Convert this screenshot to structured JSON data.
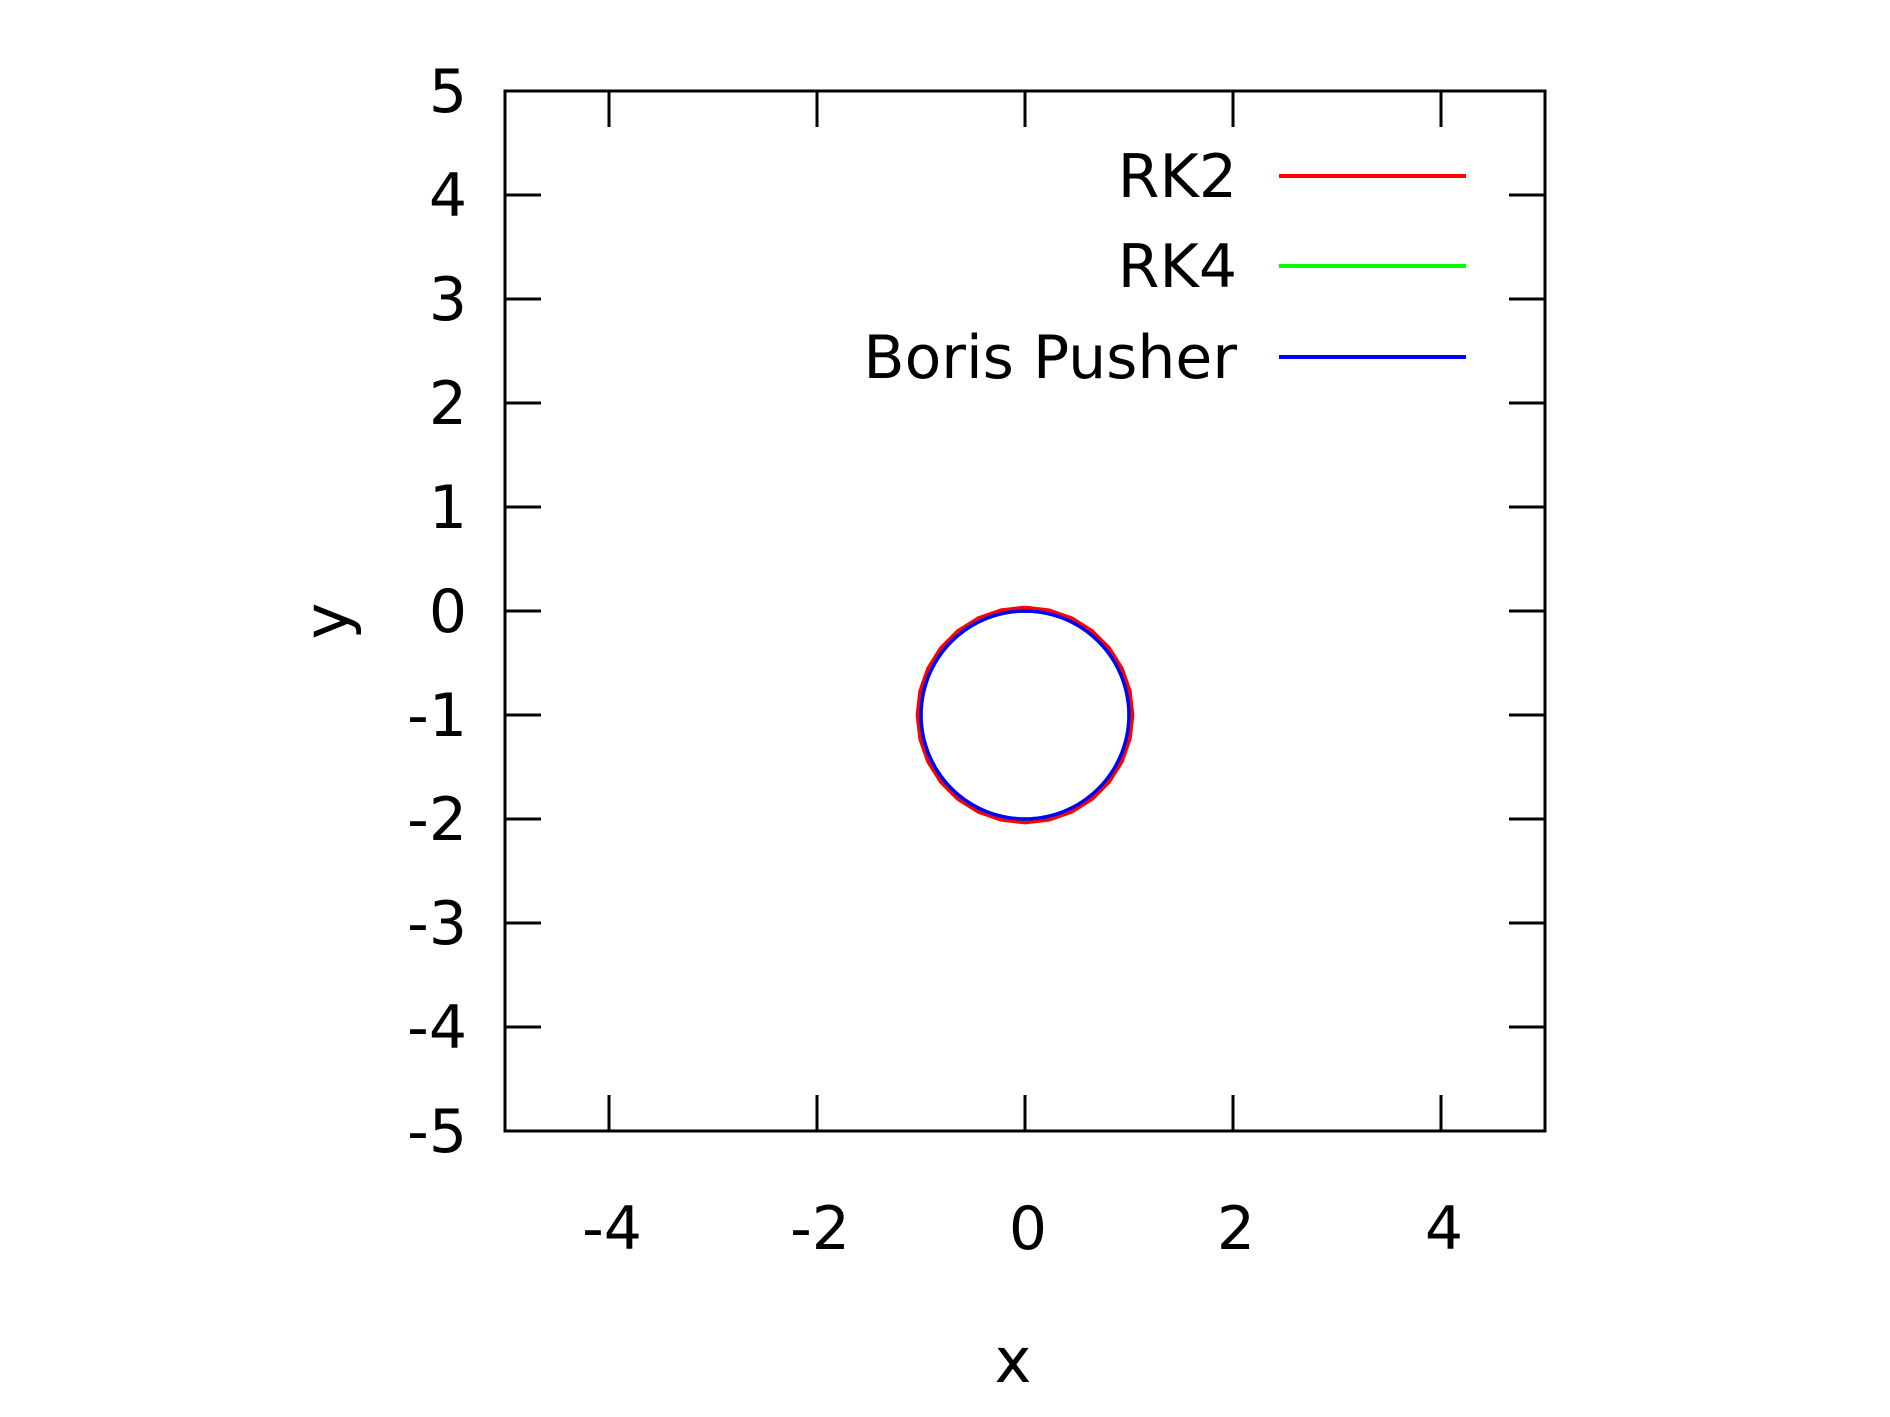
{
  "chart_data": {
    "type": "line",
    "title": "",
    "xlabel": "x",
    "ylabel": "y",
    "xlim": [
      -5,
      5
    ],
    "ylim": [
      -5,
      5
    ],
    "xticks": [
      -4,
      -2,
      0,
      2,
      4
    ],
    "yticks": [
      -5,
      -4,
      -3,
      -2,
      -1,
      0,
      1,
      2,
      3,
      4,
      5
    ],
    "grid": false,
    "legend_position": "top-right",
    "series": [
      {
        "name": "RK2",
        "color": "#ff0000",
        "shape": "circle-polyline",
        "center": [
          0,
          -1
        ],
        "radius": 1.03,
        "segments": 28
      },
      {
        "name": "RK4",
        "color": "#00ff00",
        "shape": "circle",
        "center": [
          0,
          -1
        ],
        "radius": 1.0,
        "segments": 120
      },
      {
        "name": "Boris Pusher",
        "color": "#0000ff",
        "shape": "circle",
        "center": [
          0,
          -1
        ],
        "radius": 1.0,
        "segments": 120
      }
    ]
  }
}
